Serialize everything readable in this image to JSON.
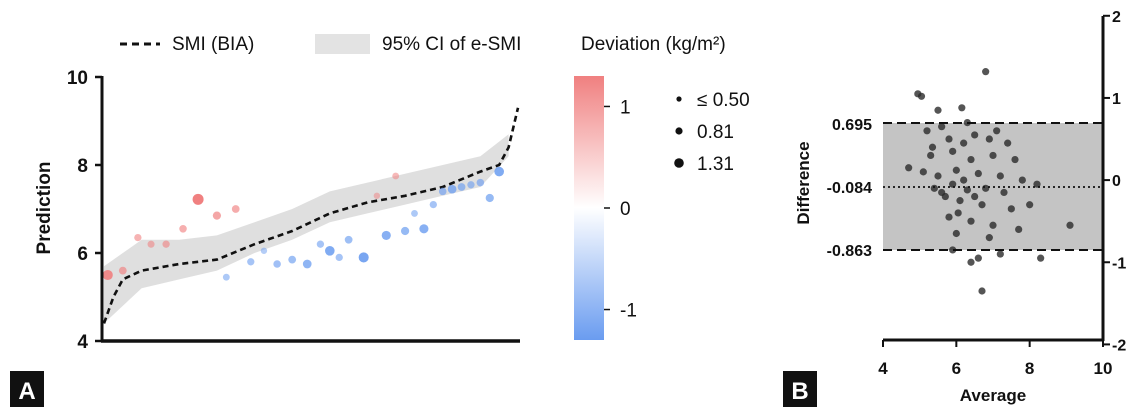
{
  "panel_a": {
    "letter": "A",
    "legend": {
      "line_label": "SMI (BIA)",
      "band_label": "95% CI of e-SMI",
      "deviation_title": "Deviation (kg/m²)"
    },
    "size_legend": [
      "≤ 0.50",
      "0.81",
      "1.31"
    ],
    "colorbar_ticks": [
      "1",
      "0",
      "-1"
    ],
    "colors": {
      "positive": "#f08080",
      "negative": "#6a9cf0",
      "band": "#d9d9d9"
    }
  },
  "panel_b": {
    "letter": "B",
    "upper_label": "0.695",
    "mean_label": "-0.084",
    "lower_label": "-0.863",
    "colors": {
      "band": "#c4c4c4",
      "points": "#2b2b2b"
    }
  },
  "chart_data": [
    {
      "type": "scatter",
      "title": "",
      "xlabel": "",
      "ylabel": "Prediction",
      "ylim": [
        4,
        10
      ],
      "yticks": [
        "4",
        "6",
        "8",
        "10"
      ],
      "series": [
        {
          "name": "SMI (BIA)",
          "kind": "line",
          "x": [
            0,
            5,
            10,
            20,
            40,
            60,
            80,
            100,
            120,
            140,
            160,
            180,
            200,
            210,
            215,
            220
          ],
          "y": [
            4.4,
            5.0,
            5.4,
            5.6,
            5.75,
            5.85,
            6.2,
            6.5,
            6.9,
            7.15,
            7.3,
            7.5,
            7.85,
            8.0,
            8.4,
            9.3
          ]
        },
        {
          "name": "95% CI of e-SMI",
          "kind": "band",
          "x": [
            0,
            20,
            40,
            60,
            80,
            100,
            120,
            140,
            160,
            180,
            200,
            215
          ],
          "lower": [
            4.4,
            5.2,
            5.4,
            5.6,
            6.0,
            6.3,
            6.7,
            6.9,
            7.1,
            7.3,
            7.5,
            8.2
          ],
          "upper": [
            5.7,
            6.3,
            6.3,
            6.4,
            6.7,
            7.0,
            7.4,
            7.6,
            7.8,
            8.0,
            8.2,
            8.7
          ]
        },
        {
          "name": "Deviation (kg/m²)",
          "kind": "points",
          "x": [
            2,
            10,
            18,
            25,
            33,
            42,
            50,
            60,
            65,
            70,
            78,
            85,
            92,
            100,
            108,
            115,
            120,
            125,
            130,
            138,
            145,
            150,
            155,
            160,
            165,
            170,
            175,
            180,
            185,
            190,
            195,
            200,
            205,
            210
          ],
          "y": [
            5.5,
            5.6,
            6.35,
            6.2,
            6.2,
            6.55,
            7.22,
            6.85,
            5.45,
            7.0,
            5.8,
            6.05,
            5.75,
            5.85,
            5.75,
            6.2,
            6.05,
            5.9,
            6.3,
            5.9,
            7.3,
            6.4,
            7.75,
            6.5,
            6.9,
            6.55,
            7.1,
            7.4,
            7.45,
            7.5,
            7.55,
            7.6,
            7.25,
            7.85
          ],
          "deviation": [
            1.1,
            0.6,
            0.5,
            0.45,
            0.5,
            0.55,
            1.3,
            0.7,
            -0.4,
            0.6,
            -0.5,
            -0.3,
            -0.55,
            -0.6,
            -0.8,
            -0.5,
            -1.0,
            -0.5,
            -0.6,
            -1.1,
            0.3,
            -0.9,
            0.4,
            -0.7,
            -0.4,
            -0.9,
            -0.5,
            -0.55,
            -0.8,
            -0.6,
            -0.5,
            -0.55,
            -0.7,
            -1.0
          ]
        }
      ],
      "colorbar": {
        "min": -1.3,
        "max": 1.3
      },
      "legend_position": "top"
    },
    {
      "type": "scatter",
      "title": "",
      "xlabel": "Average",
      "ylabel": "Difference",
      "xlim": [
        4,
        10
      ],
      "ylim": [
        -2,
        2
      ],
      "xticks": [
        "4",
        "6",
        "8",
        "10"
      ],
      "yticks_right": [
        "2",
        "1",
        "0",
        "-1",
        "-2"
      ],
      "mean_diff": -0.084,
      "upper_loa": 0.695,
      "lower_loa": -0.863,
      "points": [
        [
          4.95,
          1.05
        ],
        [
          5.05,
          1.02
        ],
        [
          6.15,
          0.88
        ],
        [
          6.8,
          1.32
        ],
        [
          5.5,
          0.85
        ],
        [
          6.3,
          0.7
        ],
        [
          5.2,
          0.6
        ],
        [
          5.6,
          0.65
        ],
        [
          6.5,
          0.55
        ],
        [
          7.1,
          0.6
        ],
        [
          5.8,
          0.5
        ],
        [
          6.2,
          0.45
        ],
        [
          6.9,
          0.5
        ],
        [
          7.4,
          0.45
        ],
        [
          5.3,
          0.3
        ],
        [
          5.9,
          0.35
        ],
        [
          6.4,
          0.25
        ],
        [
          7.0,
          0.3
        ],
        [
          7.6,
          0.25
        ],
        [
          4.7,
          0.15
        ],
        [
          5.1,
          0.1
        ],
        [
          5.5,
          0.05
        ],
        [
          6.0,
          0.12
        ],
        [
          6.6,
          0.08
        ],
        [
          7.2,
          0.05
        ],
        [
          7.8,
          0.0
        ],
        [
          8.2,
          -0.05
        ],
        [
          5.4,
          -0.1
        ],
        [
          5.9,
          -0.05
        ],
        [
          6.3,
          -0.12
        ],
        [
          6.8,
          -0.1
        ],
        [
          7.3,
          -0.15
        ],
        [
          5.7,
          -0.2
        ],
        [
          6.1,
          -0.25
        ],
        [
          6.7,
          -0.3
        ],
        [
          7.5,
          -0.35
        ],
        [
          8.0,
          -0.3
        ],
        [
          5.8,
          -0.45
        ],
        [
          6.4,
          -0.5
        ],
        [
          7.0,
          -0.55
        ],
        [
          6.0,
          -0.65
        ],
        [
          6.9,
          -0.7
        ],
        [
          5.9,
          -0.85
        ],
        [
          6.6,
          -0.95
        ],
        [
          7.2,
          -0.9
        ],
        [
          6.4,
          -1.0
        ],
        [
          6.7,
          -1.35
        ],
        [
          9.1,
          -0.55
        ],
        [
          8.3,
          -0.95
        ],
        [
          5.6,
          -0.15
        ],
        [
          6.2,
          0.0
        ],
        [
          6.5,
          -0.2
        ],
        [
          7.7,
          -0.6
        ],
        [
          5.35,
          0.4
        ],
        [
          6.05,
          -0.4
        ]
      ]
    }
  ]
}
